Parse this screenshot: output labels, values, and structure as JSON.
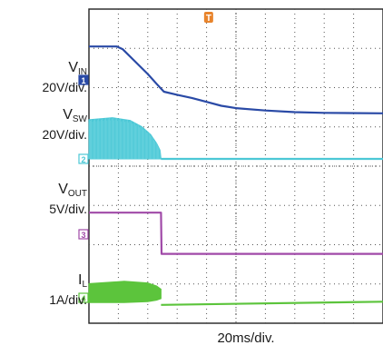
{
  "chart_data": {
    "type": "line",
    "title": "",
    "x": {
      "divisions": 10,
      "label": "20ms/div."
    },
    "y": {
      "divisions": 8
    },
    "trigger_marker": "T",
    "series": [
      {
        "name": "V_IN",
        "label_main": "V",
        "label_sub": "IN",
        "scale": "20V/div.",
        "channel": "1",
        "color": "#2a4aa6",
        "render": "line",
        "points": [
          [
            0,
            0.85
          ],
          [
            0.95,
            0.85
          ],
          [
            1.15,
            0.78
          ],
          [
            1.5,
            0.52
          ],
          [
            2.0,
            0.15
          ],
          [
            2.3,
            -0.1
          ],
          [
            2.55,
            -0.3
          ],
          [
            3.0,
            -0.38
          ],
          [
            3.5,
            -0.46
          ],
          [
            4.0,
            -0.56
          ],
          [
            4.5,
            -0.66
          ],
          [
            5.0,
            -0.72
          ],
          [
            6.0,
            -0.78
          ],
          [
            7.0,
            -0.82
          ],
          [
            8.0,
            -0.84
          ],
          [
            10.0,
            -0.85
          ]
        ]
      },
      {
        "name": "V_SW",
        "label_main": "V",
        "label_sub": "SW",
        "scale": "20V/div.",
        "channel": "2",
        "color": "#4cc8d6",
        "render": "envelope",
        "baseline": 0,
        "envelope": [
          [
            0,
            1.0
          ],
          [
            0.8,
            1.05
          ],
          [
            1.4,
            0.98
          ],
          [
            1.8,
            0.82
          ],
          [
            2.1,
            0.62
          ],
          [
            2.3,
            0.4
          ],
          [
            2.42,
            0.22
          ],
          [
            2.45,
            0.0
          ]
        ]
      },
      {
        "name": "V_OUT",
        "label_main": "V",
        "label_sub": "OUT",
        "scale": "5V/div.",
        "channel": "3",
        "color": "#a04aa8",
        "render": "line",
        "points": [
          [
            0,
            0.55
          ],
          [
            2.45,
            0.55
          ],
          [
            2.47,
            -0.5
          ],
          [
            10.0,
            -0.5
          ]
        ]
      },
      {
        "name": "I_L",
        "label_main": "I",
        "label_sub": "L",
        "scale": "1A/div.",
        "channel": "4",
        "color": "#5cc43c",
        "render": "band",
        "band": [
          [
            0,
            0.36,
            -0.12
          ],
          [
            1.2,
            0.42,
            -0.12
          ],
          [
            2.0,
            0.38,
            -0.1
          ],
          [
            2.3,
            0.3,
            -0.06
          ],
          [
            2.45,
            0.22,
            -0.02
          ]
        ],
        "after": [
          [
            2.45,
            -0.18
          ],
          [
            10.0,
            -0.1
          ]
        ]
      }
    ]
  }
}
